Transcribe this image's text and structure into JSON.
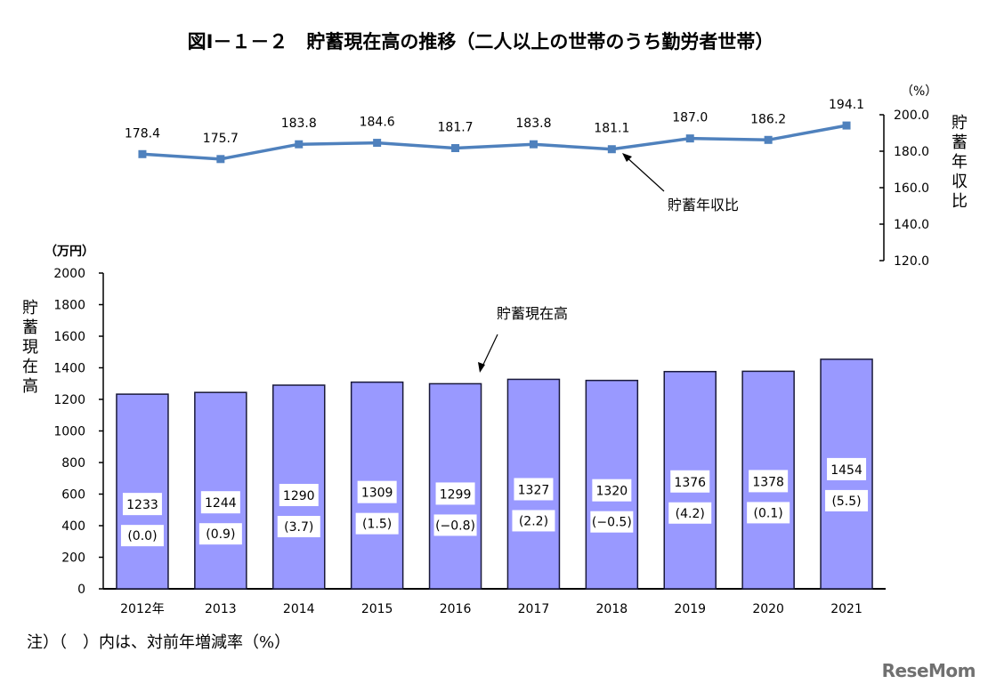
{
  "chart_data": [
    {
      "type": "line",
      "title": "図Ⅰ－１－２　貯蓄現在高の推移（二人以上の世帯のうち勤労者世帯）",
      "series_name": "貯蓄年収比",
      "y_axis_label": "貯蓄年収比",
      "y_unit": "（%）",
      "ylim": [
        120.0,
        200.0
      ],
      "y_ticks": [
        "200.0",
        "180.0",
        "160.0",
        "140.0",
        "120.0"
      ],
      "y_tick_values": [
        200,
        180,
        160,
        140,
        120
      ],
      "x": [
        "2012",
        "2013",
        "2014",
        "2015",
        "2016",
        "2017",
        "2018",
        "2019",
        "2020",
        "2021"
      ],
      "values": [
        178.4,
        175.7,
        183.8,
        184.6,
        181.7,
        183.8,
        181.1,
        187.0,
        186.2,
        194.1
      ],
      "value_labels": [
        "178.4",
        "175.7",
        "183.8",
        "184.6",
        "181.7",
        "183.8",
        "181.1",
        "187.0",
        "186.2",
        "194.1"
      ],
      "annotation": "貯蓄年収比",
      "color": "#4f81bd"
    },
    {
      "type": "bar",
      "series_name": "貯蓄現在高",
      "y_axis_label": "貯蓄現在高",
      "y_unit": "（万円）",
      "ylim": [
        0,
        2000
      ],
      "y_ticks": [
        "2000",
        "1800",
        "1600",
        "1400",
        "1200",
        "1000",
        "800",
        "600",
        "400",
        "200",
        "0"
      ],
      "y_tick_values": [
        2000,
        1800,
        1600,
        1400,
        1200,
        1000,
        800,
        600,
        400,
        200,
        0
      ],
      "categories": [
        "2012年",
        "2013",
        "2014",
        "2015",
        "2016",
        "2017",
        "2018",
        "2019",
        "2020",
        "2021"
      ],
      "values": [
        1233,
        1244,
        1290,
        1309,
        1299,
        1327,
        1320,
        1376,
        1378,
        1454
      ],
      "value_labels": [
        "1233",
        "1244",
        "1290",
        "1309",
        "1299",
        "1327",
        "1320",
        "1376",
        "1378",
        "1454"
      ],
      "change_labels": [
        "(0.0)",
        "(0.9)",
        "(3.7)",
        "(1.5)",
        "(−0.8)",
        "(2.2)",
        "(−0.5)",
        "(4.2)",
        "(0.1)",
        "(5.5)"
      ],
      "change_values": [
        0.0,
        0.9,
        3.7,
        1.5,
        -0.8,
        2.2,
        -0.5,
        4.2,
        0.1,
        5.5
      ],
      "annotation": "貯蓄現在高",
      "color": "#9999ff"
    }
  ],
  "title": "図Ⅰ－１－２　貯蓄現在高の推移（二人以上の世帯のうち勤労者世帯）",
  "note": "注）（　）内は、対前年増減率（%）",
  "logo": "ReseMom"
}
